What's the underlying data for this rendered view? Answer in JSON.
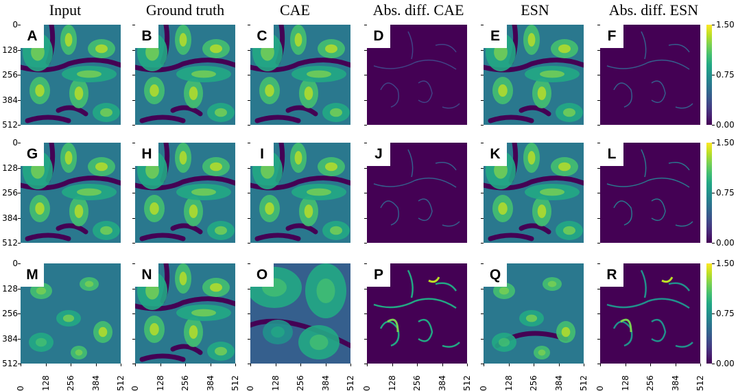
{
  "columns": [
    "Input",
    "Ground truth",
    "CAE",
    "Abs. diff. CAE",
    "ESN",
    "Abs. diff. ESN"
  ],
  "panel_labels": [
    [
      "A",
      "B",
      "C",
      "D",
      "E",
      "F"
    ],
    [
      "G",
      "H",
      "I",
      "J",
      "K",
      "L"
    ],
    [
      "M",
      "N",
      "O",
      "P",
      "Q",
      "R"
    ]
  ],
  "axis_ticks": [
    "0",
    "128",
    "256",
    "384",
    "512"
  ],
  "colorbar_ticks": [
    "1.50",
    "0.75",
    "0.00"
  ],
  "colormap": [
    "#440154",
    "#482475",
    "#414487",
    "#355f8d",
    "#2a788e",
    "#21918c",
    "#22a884",
    "#44bf70",
    "#7ad151",
    "#bddf26",
    "#fde725"
  ],
  "chart_data": {
    "type": "heatmap",
    "grid": "3 rows x 6 columns",
    "columns": [
      "Input",
      "Ground truth",
      "CAE",
      "Abs. diff. CAE",
      "ESN",
      "Abs. diff. ESN"
    ],
    "x_range": [
      0,
      512
    ],
    "y_range": [
      0,
      512
    ],
    "y_inverted": true,
    "x_ticks": [
      0,
      128,
      256,
      384,
      512
    ],
    "y_ticks": [
      0,
      128,
      256,
      384,
      512
    ],
    "colorbar_range": [
      0.0,
      1.5
    ],
    "colorbar_ticks": [
      0.0,
      0.75,
      1.5
    ],
    "colormap": "viridis"
  }
}
